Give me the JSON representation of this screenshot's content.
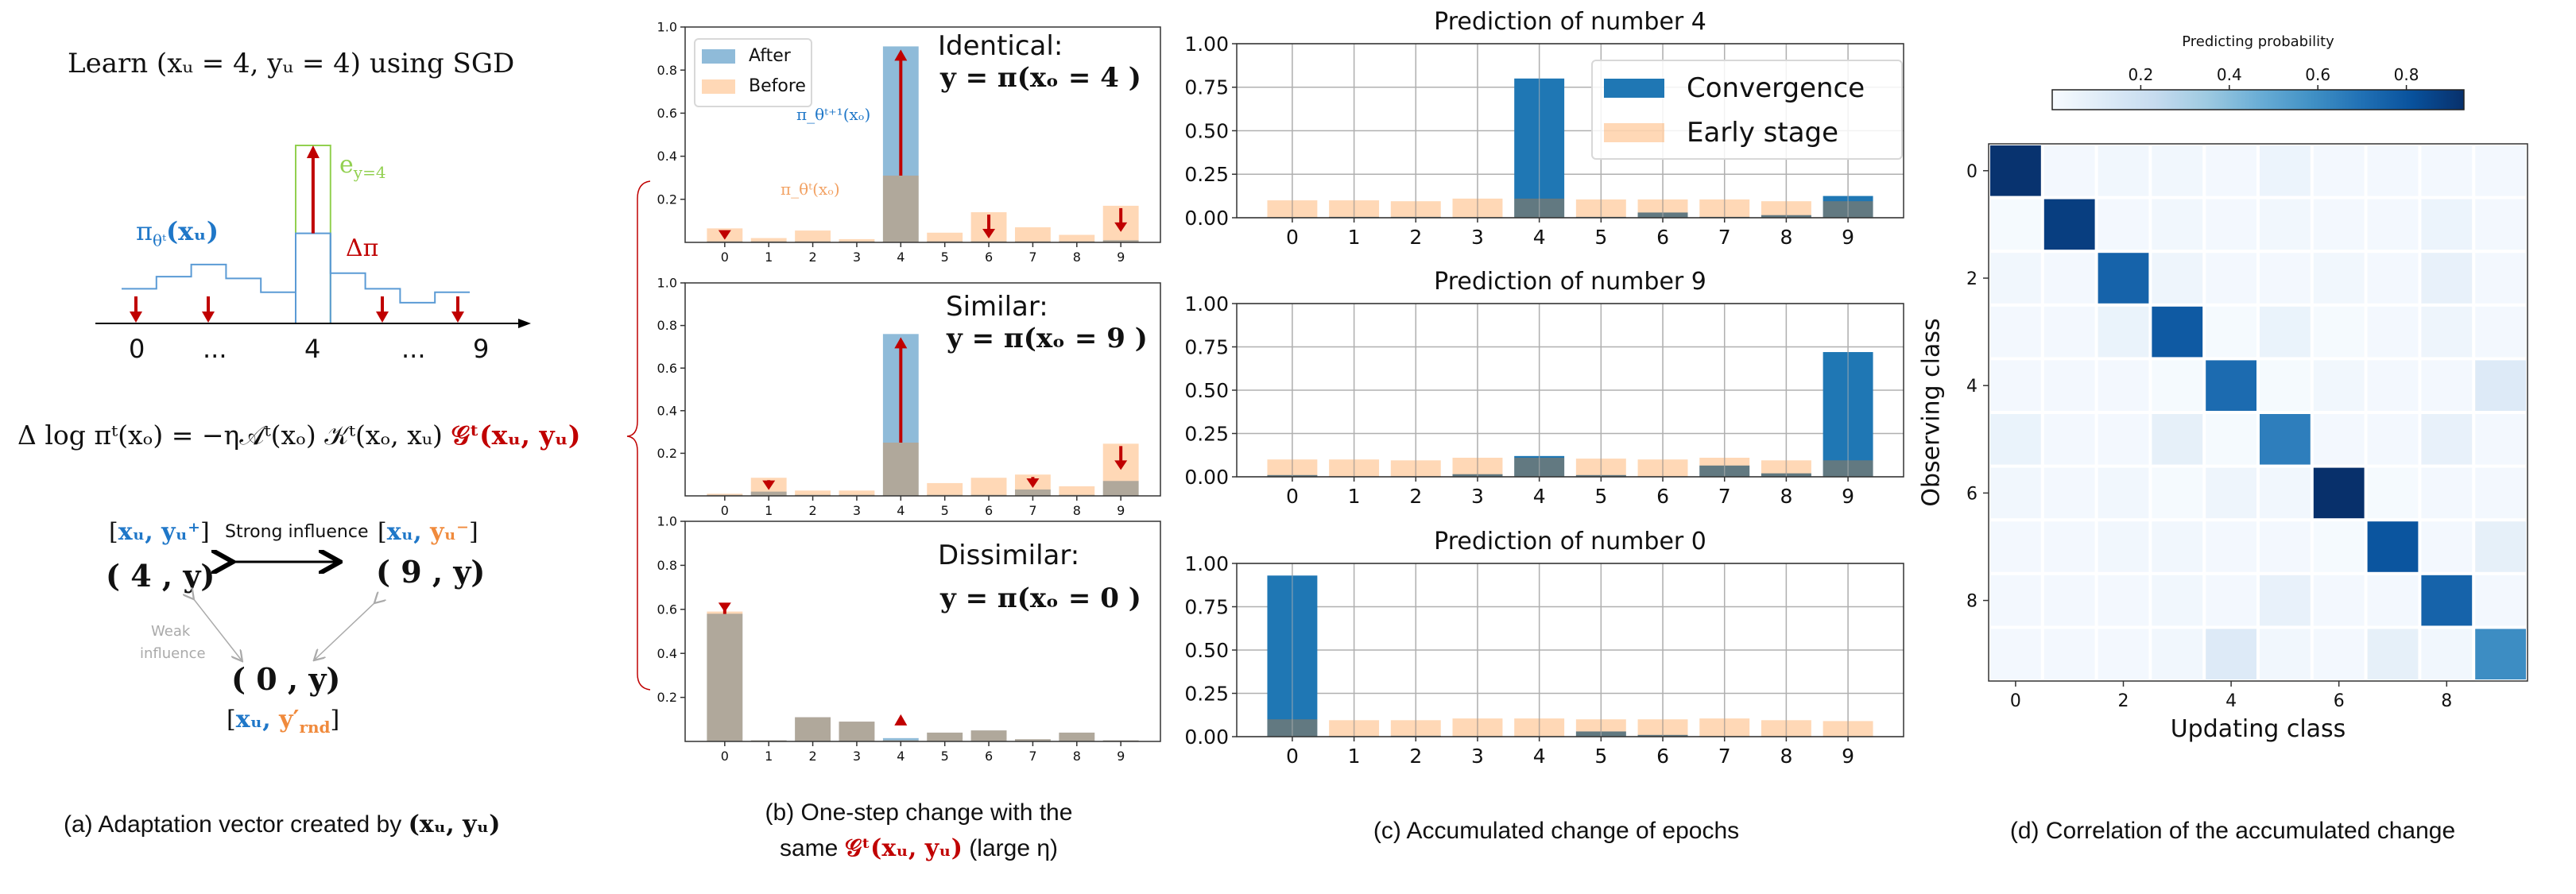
{
  "colors": {
    "after": "#1f77b4",
    "before": "#ff7f0e",
    "arrow": "#c00000",
    "step_line": "#5b9bd5",
    "e_box": "#92d050",
    "text_blue": "#1f77c8",
    "text_orange": "#f08a3c",
    "grid": "#b0b0b0"
  },
  "panel_a": {
    "title": "Learn (xᵤ = 4, yᵤ = 4) using SGD",
    "pi_label": "π",
    "pi_sub": "θᵗ",
    "pi_arg": "(xᵤ)",
    "e_label": "e",
    "e_sub": "y=4",
    "delta_pi": "Δπ",
    "x_labels": [
      "0",
      "...",
      "4",
      "...",
      "9"
    ],
    "step_levels": [
      0.2,
      0.27,
      0.34,
      0.26,
      0.18,
      0.52,
      0.29,
      0.2,
      0.12,
      0.18
    ],
    "equation_black": "Δ log πᵗ(xₒ) = −η𝒜ᵗ(xₒ) 𝒦ᵗ(xₒ, xᵤ) ",
    "equation_red": "𝒢ᵗ(xᵤ, yᵤ)",
    "node_pos_label_open": "[",
    "node_pos_label_x": "xᵤ, yᵤ⁺",
    "node_pos_label_close": "]",
    "node_pos": "( 4 , y)",
    "strong_influence": "Strong influence",
    "node_neg_label_open": "[",
    "node_neg_label_x": "xᵤ, ",
    "node_neg_label_y": "yᵤ⁻",
    "node_neg_label_close": "]",
    "node_neg": "( 9 , y)",
    "weak_influence_1": "Weak",
    "weak_influence_2": "influence",
    "node_rnd": "( 0 , y)",
    "node_rnd_label_open": "[",
    "node_rnd_label_x": "xᵤ, ",
    "node_rnd_label_y": "y′",
    "node_rnd_label_sub": "rnd",
    "node_rnd_label_close": "]",
    "caption_text": "(a) Adaptation vector created by ",
    "caption_math": "(xᵤ, yᵤ)"
  },
  "panel_b": {
    "legend": [
      "After",
      "Before"
    ],
    "annot_after": "π_θᵗ⁺¹(xₒ)",
    "annot_before": "π_θᵗ(xₒ)",
    "caption_line1": "(b) One-step change with the",
    "caption_line2_a": "same ",
    "caption_line2_red": "𝒢ᵗ(xᵤ, yᵤ)",
    "caption_line2_b": " (large η)"
  },
  "panel_c": {
    "legend": [
      "Convergence",
      "Early stage"
    ],
    "caption": "(c) Accumulated change of epochs"
  },
  "panel_d": {
    "caption": "(d) Correlation of the accumulated change"
  },
  "chart_data": [
    {
      "id": "b1",
      "type": "bar",
      "title": "Identical:",
      "subtitle": "y = π(xₒ = 4 )",
      "categories": [
        "0",
        "1",
        "2",
        "3",
        "4",
        "5",
        "6",
        "7",
        "8",
        "9"
      ],
      "ylim": [
        0,
        1
      ],
      "yticks": [
        "0.2",
        "0.4",
        "0.6",
        "0.8",
        "1.0"
      ],
      "grid": false,
      "legend": "top-left",
      "series": [
        {
          "name": "After",
          "values": [
            0.005,
            0.005,
            0.005,
            0.005,
            0.91,
            0.005,
            0.005,
            0.005,
            0.005,
            0.01
          ]
        },
        {
          "name": "Before",
          "values": [
            0.065,
            0.02,
            0.055,
            0.015,
            0.31,
            0.045,
            0.14,
            0.07,
            0.035,
            0.17
          ]
        }
      ],
      "arrows_up": [
        4
      ],
      "arrows_down": [
        0,
        6,
        9
      ]
    },
    {
      "id": "b2",
      "type": "bar",
      "title": "Similar:",
      "subtitle": "y = π(xₒ = 9 )",
      "categories": [
        "0",
        "1",
        "2",
        "3",
        "4",
        "5",
        "6",
        "7",
        "8",
        "9"
      ],
      "ylim": [
        0,
        1
      ],
      "yticks": [
        "0.2",
        "0.4",
        "0.6",
        "0.8",
        "1.0"
      ],
      "grid": false,
      "series": [
        {
          "name": "After",
          "values": [
            0.005,
            0.02,
            0.005,
            0.005,
            0.76,
            0.005,
            0.005,
            0.03,
            0.005,
            0.07
          ]
        },
        {
          "name": "Before",
          "values": [
            0.01,
            0.085,
            0.025,
            0.025,
            0.25,
            0.06,
            0.085,
            0.1,
            0.045,
            0.245
          ]
        }
      ],
      "arrows_up": [
        4
      ],
      "arrows_down": [
        1,
        7,
        9
      ]
    },
    {
      "id": "b3",
      "type": "bar",
      "title": "Dissimilar:",
      "subtitle": "y = π(xₒ = 0 )",
      "categories": [
        "0",
        "1",
        "2",
        "3",
        "4",
        "5",
        "6",
        "7",
        "8",
        "9"
      ],
      "ylim": [
        0,
        1
      ],
      "yticks": [
        "0.2",
        "0.4",
        "0.6",
        "0.8",
        "1.0"
      ],
      "grid": false,
      "series": [
        {
          "name": "After",
          "values": [
            0.58,
            0.005,
            0.11,
            0.09,
            0.015,
            0.04,
            0.05,
            0.01,
            0.04,
            0.005
          ]
        },
        {
          "name": "Before",
          "values": [
            0.59,
            0.005,
            0.11,
            0.09,
            0.005,
            0.04,
            0.05,
            0.01,
            0.04,
            0.005
          ]
        }
      ],
      "arrows_up": [
        4
      ],
      "arrows_down": [
        0
      ]
    },
    {
      "id": "c1",
      "type": "bar",
      "title": "Prediction of number 4",
      "categories": [
        "0",
        "1",
        "2",
        "3",
        "4",
        "5",
        "6",
        "7",
        "8",
        "9"
      ],
      "ylim": [
        0,
        1
      ],
      "yticks": [
        "0.00",
        "0.25",
        "0.50",
        "0.75",
        "1.00"
      ],
      "grid": true,
      "legend": "top-right",
      "series": [
        {
          "name": "Convergence",
          "values": [
            0.003,
            0.005,
            0.005,
            0.003,
            0.8,
            0.005,
            0.03,
            0.005,
            0.015,
            0.125
          ]
        },
        {
          "name": "Early stage",
          "values": [
            0.1,
            0.1,
            0.095,
            0.11,
            0.11,
            0.105,
            0.105,
            0.105,
            0.095,
            0.095
          ]
        }
      ]
    },
    {
      "id": "c2",
      "type": "bar",
      "title": "Prediction of number 9",
      "categories": [
        "0",
        "1",
        "2",
        "3",
        "4",
        "5",
        "6",
        "7",
        "8",
        "9"
      ],
      "ylim": [
        0,
        1
      ],
      "yticks": [
        "0.00",
        "0.25",
        "0.50",
        "0.75",
        "1.00"
      ],
      "grid": true,
      "series": [
        {
          "name": "Convergence",
          "values": [
            0.01,
            0.003,
            0.003,
            0.015,
            0.12,
            0.01,
            0.003,
            0.065,
            0.02,
            0.72
          ]
        },
        {
          "name": "Early stage",
          "values": [
            0.1,
            0.1,
            0.095,
            0.11,
            0.11,
            0.105,
            0.1,
            0.11,
            0.095,
            0.095
          ]
        }
      ]
    },
    {
      "id": "c3",
      "type": "bar",
      "title": "Prediction of number 0",
      "categories": [
        "0",
        "1",
        "2",
        "3",
        "4",
        "5",
        "6",
        "7",
        "8",
        "9"
      ],
      "ylim": [
        0,
        1
      ],
      "yticks": [
        "0.00",
        "0.25",
        "0.50",
        "0.75",
        "1.00"
      ],
      "grid": true,
      "series": [
        {
          "name": "Convergence",
          "values": [
            0.93,
            0.003,
            0.005,
            0.003,
            0.003,
            0.03,
            0.01,
            0.003,
            0.003,
            0.003
          ]
        },
        {
          "name": "Early stage",
          "values": [
            0.1,
            0.095,
            0.095,
            0.105,
            0.105,
            0.1,
            0.1,
            0.105,
            0.095,
            0.09
          ]
        }
      ]
    },
    {
      "id": "d",
      "type": "heatmap",
      "xlabel": "Updating class",
      "ylabel": "Observing class",
      "xticks": [
        "0",
        "2",
        "4",
        "6",
        "8"
      ],
      "yticks": [
        "0",
        "2",
        "4",
        "6",
        "8"
      ],
      "colorbar_label": "Predicting probability",
      "colorbar_ticks": [
        "0.2",
        "0.4",
        "0.6",
        "0.8"
      ],
      "colorbar_range": [
        0,
        0.93
      ],
      "colormap": "Blues",
      "matrix": [
        [
          0.92,
          0.02,
          0.03,
          0.03,
          0.02,
          0.05,
          0.02,
          0.02,
          0.02,
          0.02
        ],
        [
          0.01,
          0.88,
          0.02,
          0.03,
          0.02,
          0.03,
          0.02,
          0.02,
          0.05,
          0.02
        ],
        [
          0.03,
          0.02,
          0.75,
          0.04,
          0.02,
          0.02,
          0.03,
          0.02,
          0.07,
          0.02
        ],
        [
          0.02,
          0.02,
          0.06,
          0.78,
          0.01,
          0.06,
          0.01,
          0.02,
          0.04,
          0.02
        ],
        [
          0.02,
          0.02,
          0.02,
          0.01,
          0.72,
          0.01,
          0.03,
          0.02,
          0.02,
          0.12
        ],
        [
          0.06,
          0.02,
          0.02,
          0.08,
          0.01,
          0.65,
          0.02,
          0.02,
          0.07,
          0.02
        ],
        [
          0.03,
          0.02,
          0.03,
          0.01,
          0.04,
          0.03,
          0.93,
          0.01,
          0.02,
          0.02
        ],
        [
          0.02,
          0.02,
          0.03,
          0.03,
          0.02,
          0.02,
          0.01,
          0.8,
          0.02,
          0.08
        ],
        [
          0.02,
          0.02,
          0.02,
          0.03,
          0.02,
          0.07,
          0.02,
          0.02,
          0.75,
          0.02
        ],
        [
          0.02,
          0.02,
          0.02,
          0.03,
          0.12,
          0.03,
          0.02,
          0.08,
          0.03,
          0.6
        ]
      ]
    }
  ]
}
